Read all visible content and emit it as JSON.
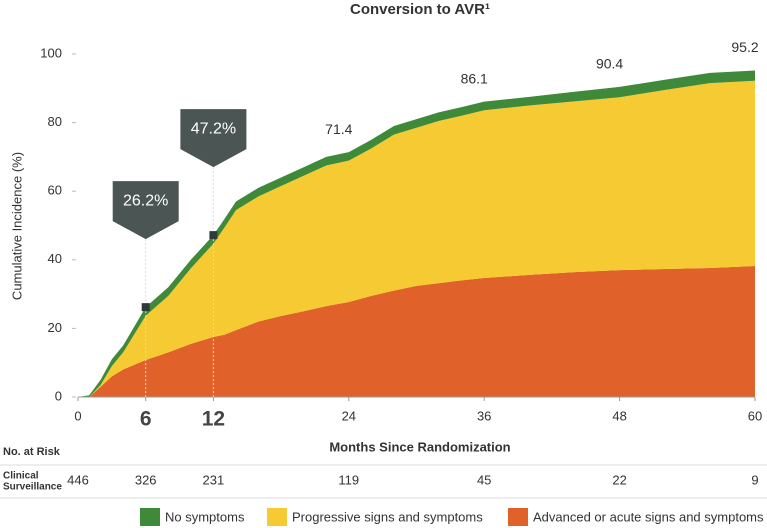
{
  "chart_data": {
    "type": "stacked_area",
    "title": "Conversion to AVR¹",
    "y_label": "Cumulative Incidence (%)",
    "x_label": "Months Since Randomization",
    "x": [
      0,
      1,
      2,
      3,
      4,
      6,
      8,
      10,
      12,
      13,
      14,
      16,
      18,
      20,
      22,
      24,
      26,
      28,
      30,
      32,
      34,
      36,
      40,
      44,
      48,
      52,
      56,
      60
    ],
    "series": [
      {
        "name": "No symptoms",
        "color": "#3f8a3a",
        "values": [
          0,
          0.5,
          1.5,
          2,
          2,
          2.5,
          2.5,
          2.5,
          2.5,
          2.5,
          2.5,
          2.5,
          2.5,
          2.5,
          2.5,
          2.5,
          2.5,
          2.5,
          2.5,
          2.5,
          2.5,
          2.5,
          2.5,
          2.8,
          3,
          3,
          3,
          3
        ]
      },
      {
        "name": "Progressive signs and symptoms",
        "color": "#f6ca33",
        "values": [
          0,
          0,
          0.5,
          3,
          5,
          12.9,
          16.5,
          22,
          27.2,
          31.3,
          35,
          36.5,
          37.9,
          39.5,
          41,
          41.2,
          43,
          45.5,
          46.1,
          47.3,
          48,
          48.9,
          49.4,
          49.8,
          50.4,
          52.2,
          53.9,
          54
        ]
      },
      {
        "name": "Advanced or acute signs and symptoms",
        "color": "#e0622a",
        "values": [
          0,
          0,
          3,
          6,
          8,
          10.8,
          13,
          15.5,
          17.5,
          18.2,
          19.5,
          22,
          23.6,
          25,
          26.5,
          27.7,
          29.5,
          31,
          32.4,
          33.2,
          34,
          34.7,
          35.6,
          36.4,
          37,
          37.3,
          37.6,
          38.2
        ]
      }
    ],
    "xlim": [
      0,
      60
    ],
    "ylim": [
      0,
      100
    ],
    "xticks": [
      0,
      6,
      12,
      24,
      36,
      48,
      60
    ],
    "yticks": [
      0,
      20,
      40,
      60,
      80,
      100
    ],
    "callouts": [
      {
        "x": 6,
        "value": 26.2,
        "label": "26.2%"
      },
      {
        "x": 12,
        "value": 47.2,
        "label": "47.2%"
      }
    ],
    "annotations": [
      {
        "x": 24,
        "value": 71.4
      },
      {
        "x": 36,
        "value": 86.1
      },
      {
        "x": 48,
        "value": 90.4
      },
      {
        "x": 60,
        "value": 95.2
      }
    ],
    "risk_table": {
      "title": "No. at Risk",
      "rows": [
        {
          "label": [
            "Clinical",
            "Surveillance"
          ],
          "x": [
            0,
            6,
            12,
            24,
            36,
            48,
            60
          ],
          "values": [
            446,
            326,
            231,
            119,
            45,
            22,
            9
          ]
        }
      ]
    }
  }
}
